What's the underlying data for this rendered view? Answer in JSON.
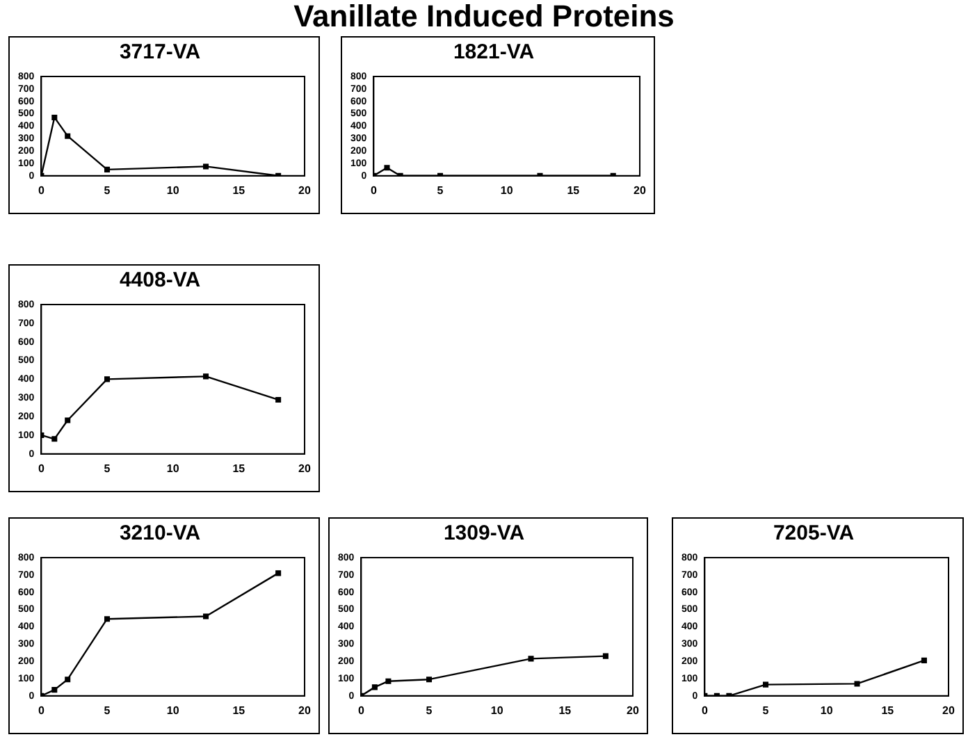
{
  "chart_data": [
    {
      "type": "other",
      "title": "Vanillate Induced Proteins"
    },
    {
      "type": "line",
      "title": "3717-VA",
      "x": [
        0,
        1,
        2,
        5,
        12.5,
        18
      ],
      "values": [
        0,
        470,
        320,
        50,
        75,
        0
      ],
      "color": "#000000",
      "marker": "square",
      "xlim": [
        0,
        20
      ],
      "xticks": [
        0,
        5,
        10,
        15,
        20
      ],
      "ylim": [
        0,
        800
      ],
      "yticks": [
        0,
        100,
        200,
        300,
        400,
        500,
        600,
        700,
        800
      ],
      "grid": false,
      "legend": false
    },
    {
      "type": "line",
      "title": "1821-VA",
      "x": [
        0,
        1,
        2,
        5,
        12.5,
        18
      ],
      "values": [
        0,
        65,
        0,
        0,
        0,
        0
      ],
      "color": "#000000",
      "marker": "square",
      "xlim": [
        0,
        20
      ],
      "xticks": [
        0,
        5,
        10,
        15,
        20
      ],
      "ylim": [
        0,
        800
      ],
      "yticks": [
        0,
        100,
        200,
        300,
        400,
        500,
        600,
        700,
        800
      ],
      "grid": false,
      "legend": false
    },
    {
      "type": "line",
      "title": "4408-VA",
      "x": [
        0,
        1,
        2,
        5,
        12.5,
        18
      ],
      "values": [
        100,
        80,
        180,
        400,
        415,
        290
      ],
      "color": "#000000",
      "marker": "square",
      "xlim": [
        0,
        20
      ],
      "xticks": [
        0,
        5,
        10,
        15,
        20
      ],
      "ylim": [
        0,
        800
      ],
      "yticks": [
        0,
        100,
        200,
        300,
        400,
        500,
        600,
        700,
        800
      ],
      "grid": false,
      "legend": false
    },
    {
      "type": "line",
      "title": "3210-VA",
      "x": [
        0,
        1,
        2,
        5,
        12.5,
        18
      ],
      "values": [
        0,
        35,
        95,
        445,
        460,
        710
      ],
      "color": "#000000",
      "marker": "square",
      "xlim": [
        0,
        20
      ],
      "xticks": [
        0,
        5,
        10,
        15,
        20
      ],
      "ylim": [
        0,
        800
      ],
      "yticks": [
        0,
        100,
        200,
        300,
        400,
        500,
        600,
        700,
        800
      ],
      "grid": false,
      "legend": false
    },
    {
      "type": "line",
      "title": "1309-VA",
      "x": [
        0,
        1,
        2,
        5,
        12.5,
        18
      ],
      "values": [
        0,
        50,
        85,
        95,
        215,
        230
      ],
      "color": "#000000",
      "marker": "square",
      "xlim": [
        0,
        20
      ],
      "xticks": [
        0,
        5,
        10,
        15,
        20
      ],
      "ylim": [
        0,
        800
      ],
      "yticks": [
        0,
        100,
        200,
        300,
        400,
        500,
        600,
        700,
        800
      ],
      "grid": false,
      "legend": false
    },
    {
      "type": "line",
      "title": "7205-VA",
      "x": [
        0,
        1,
        2,
        5,
        12.5,
        18
      ],
      "values": [
        0,
        0,
        0,
        65,
        70,
        205
      ],
      "color": "#000000",
      "marker": "square",
      "xlim": [
        0,
        20
      ],
      "xticks": [
        0,
        5,
        10,
        15,
        20
      ],
      "ylim": [
        0,
        800
      ],
      "yticks": [
        0,
        100,
        200,
        300,
        400,
        500,
        600,
        700,
        800
      ],
      "grid": false,
      "legend": false
    }
  ]
}
